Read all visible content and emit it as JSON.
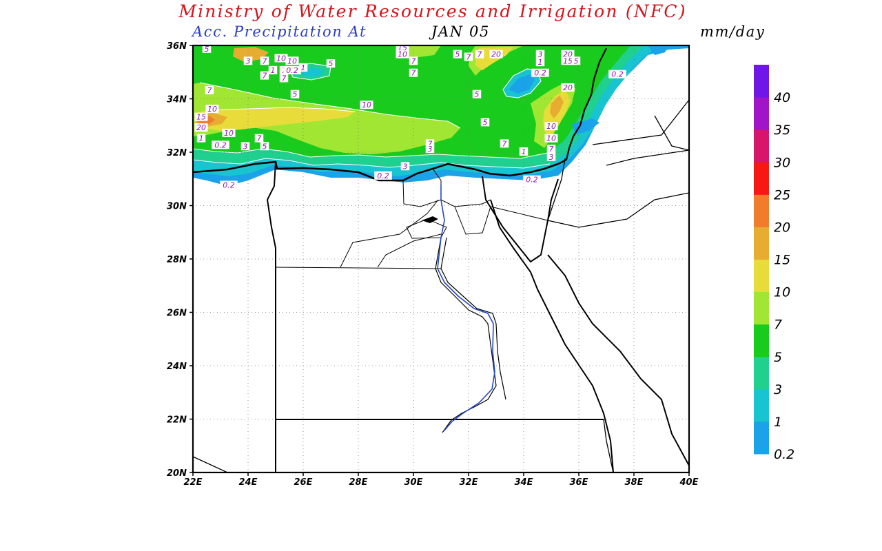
{
  "header": {
    "title": "Ministry of Water Resources and Irrigation (NFC)",
    "subtitle_variable": "Acc. Precipitation  At",
    "subtitle_date": "JAN 05",
    "units": "mm/day"
  },
  "map": {
    "lon_range": [
      22,
      40
    ],
    "lat_range": [
      20,
      36
    ],
    "lon_ticks": [
      "22E",
      "24E",
      "26E",
      "28E",
      "30E",
      "32E",
      "34E",
      "36E",
      "38E",
      "40E"
    ],
    "lat_ticks": [
      "20N",
      "22N",
      "24N",
      "26N",
      "28N",
      "30N",
      "32N",
      "34N",
      "36N"
    ],
    "grid": "dotted",
    "colors": {
      "frame": "#000000",
      "border": "#000000",
      "nile": "#2347c8",
      "contour": "#ffffff"
    }
  },
  "colorbar": {
    "labels": [
      "0.2",
      "1",
      "3",
      "5",
      "7",
      "10",
      "15",
      "20",
      "25",
      "30",
      "35",
      "40"
    ],
    "colors": [
      "#1aa3e8",
      "#17c4cf",
      "#1fd08e",
      "#19cb1c",
      "#a0e632",
      "#e8dc3a",
      "#e7ad33",
      "#ef7d2c",
      "#f71714",
      "#d8146b",
      "#a214c8",
      "#6e17e6"
    ]
  },
  "contour_labels": [
    {
      "text": "5",
      "lon": 22.5,
      "lat": 35.85
    },
    {
      "text": "3",
      "lon": 24.0,
      "lat": 35.4
    },
    {
      "text": "7",
      "lon": 24.6,
      "lat": 35.4
    },
    {
      "text": "10",
      "lon": 25.2,
      "lat": 35.5
    },
    {
      "text": "10",
      "lon": 25.6,
      "lat": 35.4
    },
    {
      "text": "1",
      "lon": 24.9,
      "lat": 35.05
    },
    {
      "text": "7",
      "lon": 25.3,
      "lat": 35.05
    },
    {
      "text": "0.2",
      "lon": 25.6,
      "lat": 35.05
    },
    {
      "text": "1",
      "lon": 26.0,
      "lat": 35.15
    },
    {
      "text": "7",
      "lon": 24.6,
      "lat": 34.85
    },
    {
      "text": "7",
      "lon": 25.3,
      "lat": 34.75
    },
    {
      "text": "5",
      "lon": 27.0,
      "lat": 35.3
    },
    {
      "text": "7",
      "lon": 22.6,
      "lat": 34.3
    },
    {
      "text": "5",
      "lon": 25.7,
      "lat": 34.15
    },
    {
      "text": "10",
      "lon": 22.7,
      "lat": 33.6
    },
    {
      "text": "15",
      "lon": 22.3,
      "lat": 33.3
    },
    {
      "text": "20",
      "lon": 22.3,
      "lat": 32.9
    },
    {
      "text": "10",
      "lon": 23.3,
      "lat": 32.7
    },
    {
      "text": "1",
      "lon": 22.3,
      "lat": 32.5
    },
    {
      "text": "0.2",
      "lon": 23.0,
      "lat": 32.25
    },
    {
      "text": "7",
      "lon": 24.4,
      "lat": 32.5
    },
    {
      "text": "3",
      "lon": 23.9,
      "lat": 32.2
    },
    {
      "text": "5",
      "lon": 24.6,
      "lat": 32.2
    },
    {
      "text": "10",
      "lon": 28.3,
      "lat": 33.75
    },
    {
      "text": "15",
      "lon": 29.6,
      "lat": 35.9
    },
    {
      "text": "10",
      "lon": 29.6,
      "lat": 35.65
    },
    {
      "text": "7",
      "lon": 30.0,
      "lat": 35.4
    },
    {
      "text": "7",
      "lon": 30.0,
      "lat": 34.95
    },
    {
      "text": "5",
      "lon": 31.6,
      "lat": 35.65
    },
    {
      "text": "7",
      "lon": 32.0,
      "lat": 35.55
    },
    {
      "text": "7",
      "lon": 32.4,
      "lat": 35.65
    },
    {
      "text": "20",
      "lon": 33.0,
      "lat": 35.65
    },
    {
      "text": "3",
      "lon": 34.6,
      "lat": 35.65
    },
    {
      "text": "1",
      "lon": 34.6,
      "lat": 35.35
    },
    {
      "text": "0.2",
      "lon": 34.6,
      "lat": 34.95
    },
    {
      "text": "20",
      "lon": 35.6,
      "lat": 35.65
    },
    {
      "text": "15",
      "lon": 35.6,
      "lat": 35.4
    },
    {
      "text": "5",
      "lon": 35.9,
      "lat": 35.4
    },
    {
      "text": "0.2",
      "lon": 37.4,
      "lat": 34.9
    },
    {
      "text": "20",
      "lon": 35.6,
      "lat": 34.4
    },
    {
      "text": "5",
      "lon": 32.3,
      "lat": 34.15
    },
    {
      "text": "5",
      "lon": 32.6,
      "lat": 33.1
    },
    {
      "text": "7",
      "lon": 30.6,
      "lat": 32.3
    },
    {
      "text": "3",
      "lon": 30.6,
      "lat": 32.1
    },
    {
      "text": "7",
      "lon": 33.3,
      "lat": 32.3
    },
    {
      "text": "1",
      "lon": 34.0,
      "lat": 32.0
    },
    {
      "text": "10",
      "lon": 35.0,
      "lat": 32.95
    },
    {
      "text": "10",
      "lon": 35.0,
      "lat": 32.5
    },
    {
      "text": "7",
      "lon": 35.0,
      "lat": 32.1
    },
    {
      "text": "3",
      "lon": 35.0,
      "lat": 31.8
    },
    {
      "text": "3",
      "lon": 29.7,
      "lat": 31.45
    },
    {
      "text": "0.2",
      "lon": 28.9,
      "lat": 31.1
    },
    {
      "text": "0.2",
      "lon": 34.3,
      "lat": 30.95
    },
    {
      "text": "0.2",
      "lon": 23.3,
      "lat": 30.75
    }
  ]
}
